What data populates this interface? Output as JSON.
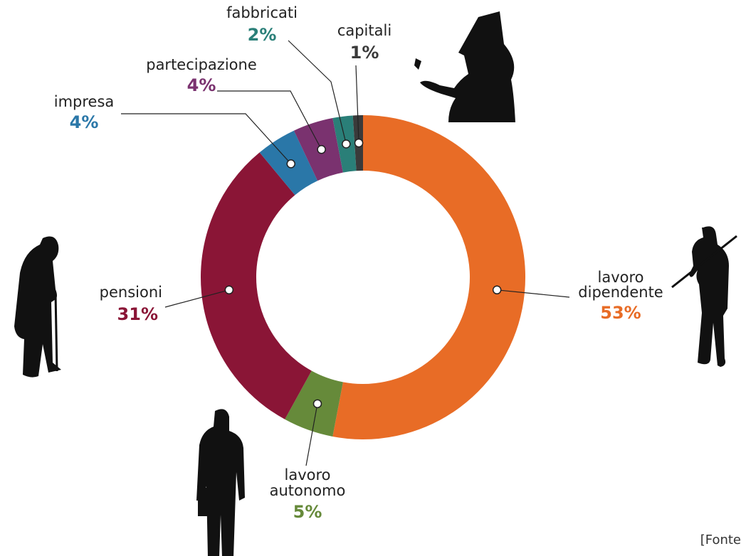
{
  "chart_data": {
    "type": "donut",
    "categories": [
      "lavoro dipendente",
      "lavoro autonomo",
      "pensioni",
      "impresa",
      "partecipazione",
      "fabbricati",
      "capitali"
    ],
    "values": [
      53,
      5,
      31,
      4,
      4,
      2,
      1
    ],
    "value_labels": [
      "53%",
      "5%",
      "31%",
      "4%",
      "4%",
      "2%",
      "1%"
    ],
    "colors": [
      "#e86c26",
      "#668a3a",
      "#8a1536",
      "#2a77a8",
      "#7a326f",
      "#2a7f78",
      "#3a3a3a"
    ],
    "source": "[Fonte"
  }
}
